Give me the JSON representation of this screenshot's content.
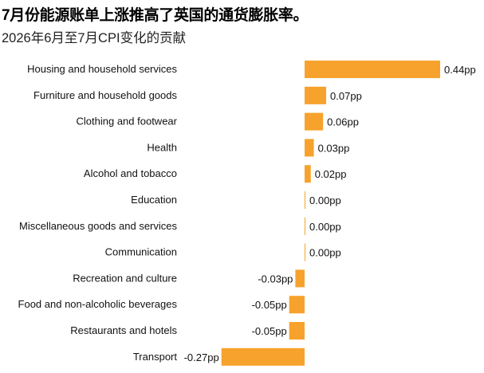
{
  "header": {
    "title": "7月份能源账单上涨推高了英国的通货膨胀率。",
    "subtitle": "2026年6月至7月CPI变化的贡献"
  },
  "chart_data": {
    "type": "bar",
    "orientation": "horizontal",
    "title": "7月份能源账单上涨推高了英国的通货膨胀率。",
    "subtitle": "2026年6月至7月CPI变化的贡献",
    "xlabel": "",
    "ylabel": "",
    "unit": "pp",
    "xlim": [
      -0.27,
      0.44
    ],
    "grid": false,
    "legend": "none",
    "bar_color": "#F7A22C",
    "categories": [
      "Housing and household services",
      "Furniture and household goods",
      "Clothing and footwear",
      "Health",
      "Alcohol and tobacco",
      "Education",
      "Miscellaneous goods and services",
      "Communication",
      "Recreation and culture",
      "Food and non-alcoholic beverages",
      "Restaurants and hotels",
      "Transport"
    ],
    "values": [
      0.44,
      0.07,
      0.06,
      0.03,
      0.02,
      0.0,
      0.0,
      0.0,
      -0.03,
      -0.05,
      -0.05,
      -0.27
    ],
    "value_labels": [
      "0.44pp",
      "0.07pp",
      "0.06pp",
      "0.03pp",
      "0.02pp",
      "0.00pp",
      "0.00pp",
      "0.00pp",
      "-0.03pp",
      "-0.05pp",
      "-0.05pp",
      "-0.27pp"
    ]
  }
}
